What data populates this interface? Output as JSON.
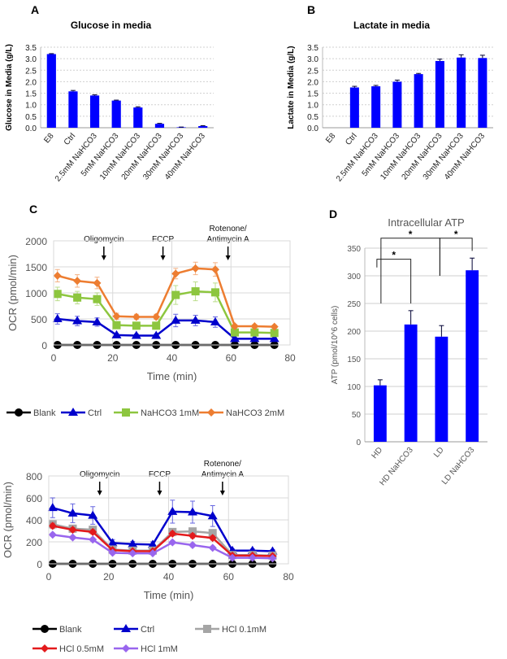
{
  "panel_labels": [
    "A",
    "B",
    "C",
    "D"
  ],
  "chart_data": [
    {
      "panel": "A",
      "type": "bar",
      "title": "Glucose in media",
      "xlabel": "",
      "ylabel": "Glucose in Media (g/L)",
      "ylim": [
        0,
        3.5
      ],
      "yticks": [
        "0.0",
        "0.5",
        "1.0",
        "1.5",
        "2.0",
        "2.5",
        "3.0",
        "3.5"
      ],
      "grid": "horizontal dashed",
      "categories": [
        "E8",
        "Ctrl",
        "2.5mM NaHCO3",
        "5mM NaHCO3",
        "10mM NaHCO3",
        "20mM NaHCO3",
        "30mM NaHCO3",
        "40mM NaHCO3"
      ],
      "values": [
        3.2,
        1.58,
        1.4,
        1.18,
        0.88,
        0.17,
        0.02,
        0.07
      ],
      "errors": [
        0.02,
        0.04,
        0.03,
        0.02,
        0.03,
        0.02,
        0.01,
        0.02
      ],
      "color": "#0000ff"
    },
    {
      "panel": "B",
      "type": "bar",
      "title": "Lactate in media",
      "xlabel": "",
      "ylabel": "Lactate in Media (g/L)",
      "ylim": [
        0,
        3.5
      ],
      "yticks": [
        "0.0",
        "0.5",
        "1.0",
        "1.5",
        "2.0",
        "2.5",
        "3.0",
        "3.5"
      ],
      "grid": "horizontal dashed",
      "categories": [
        "E8",
        "Ctrl",
        "2.5mM NaHCO3",
        "5mM NaHCO3",
        "10mM NaHCO3",
        "20mM NaHCO3",
        "30mM NaHCO3",
        "40mM NaHCO3"
      ],
      "values": [
        0,
        1.75,
        1.8,
        2.0,
        2.33,
        2.9,
        3.05,
        3.03
      ],
      "errors": [
        0,
        0.05,
        0.04,
        0.07,
        0.03,
        0.08,
        0.12,
        0.12
      ],
      "color": "#0000ff"
    },
    {
      "panel": "C",
      "type": "line",
      "xlabel": "Time (min)",
      "ylabel": "OCR (pmol/min)",
      "xlim": [
        0,
        80
      ],
      "ylim": [
        0,
        2000
      ],
      "xticks": [
        "0",
        "20",
        "40",
        "60",
        "80"
      ],
      "yticks": [
        "0",
        "500",
        "1000",
        "1500",
        "2000"
      ],
      "grid": true,
      "legend": "bottom",
      "annotations": [
        {
          "text": [
            "Oligomycin"
          ],
          "x": 17
        },
        {
          "text": [
            "FCCP"
          ],
          "x": 37
        },
        {
          "text": [
            "Rotenone/",
            "Antimycin A"
          ],
          "x": 59
        }
      ],
      "x": [
        1.3,
        8,
        14.7,
        21.3,
        28,
        34.7,
        41.3,
        48,
        54.7,
        61.3,
        68,
        74.7
      ],
      "series": [
        {
          "name": "Blank",
          "color": "#000000",
          "marker": "circle",
          "values": [
            0,
            0,
            0,
            0,
            0,
            0,
            0,
            0,
            0,
            0,
            0,
            0
          ],
          "errors": [
            0,
            0,
            0,
            0,
            0,
            0,
            0,
            0,
            0,
            0,
            0,
            0
          ]
        },
        {
          "name": "Ctrl",
          "color": "#0000cc",
          "marker": "triangle",
          "values": [
            500,
            460,
            440,
            190,
            180,
            180,
            470,
            470,
            440,
            120,
            120,
            120
          ],
          "errors": [
            100,
            90,
            80,
            30,
            30,
            30,
            120,
            100,
            100,
            20,
            20,
            20
          ]
        },
        {
          "name": "NaHCO3 1mM",
          "color": "#8dc63f",
          "marker": "square",
          "values": [
            980,
            910,
            880,
            380,
            370,
            370,
            960,
            1030,
            1010,
            240,
            240,
            230
          ],
          "errors": [
            130,
            120,
            120,
            30,
            30,
            30,
            180,
            180,
            180,
            30,
            30,
            30
          ]
        },
        {
          "name": "NaHCO3 2mM",
          "color": "#ed7d31",
          "marker": "diamond",
          "values": [
            1330,
            1230,
            1190,
            550,
            540,
            540,
            1370,
            1470,
            1450,
            360,
            360,
            350
          ],
          "errors": [
            120,
            120,
            110,
            60,
            50,
            50,
            100,
            120,
            130,
            30,
            30,
            30
          ]
        }
      ]
    },
    {
      "panel": "C",
      "type": "line",
      "xlabel": "Time (min)",
      "ylabel": "OCR (pmol/min)",
      "xlim": [
        0,
        80
      ],
      "ylim": [
        0,
        800
      ],
      "xticks": [
        "0",
        "20",
        "40",
        "60",
        "80"
      ],
      "yticks": [
        "0",
        "200",
        "400",
        "600",
        "800"
      ],
      "grid": true,
      "legend": "bottom",
      "annotations": [
        {
          "text": [
            "Oligomycin"
          ],
          "x": 17
        },
        {
          "text": [
            "FCCP"
          ],
          "x": 37
        },
        {
          "text": [
            "Rotenone/",
            "Antimycin A"
          ],
          "x": 58
        }
      ],
      "x": [
        1.3,
        8,
        14.7,
        21.3,
        28,
        34.7,
        41.3,
        48,
        54.7,
        61.3,
        68,
        74.7
      ],
      "series": [
        {
          "name": "Blank",
          "color": "#000000",
          "marker": "circle",
          "values": [
            0,
            0,
            0,
            0,
            0,
            0,
            0,
            0,
            0,
            0,
            0,
            0
          ],
          "errors": [
            0,
            0,
            0,
            0,
            0,
            0,
            0,
            0,
            0,
            0,
            0,
            0
          ]
        },
        {
          "name": "Ctrl",
          "color": "#0000cc",
          "marker": "triangle",
          "values": [
            510,
            460,
            440,
            190,
            180,
            175,
            475,
            470,
            435,
            120,
            120,
            115
          ],
          "errors": [
            90,
            85,
            80,
            30,
            25,
            25,
            105,
            100,
            95,
            15,
            15,
            15
          ]
        },
        {
          "name": "HCl 0.1mM",
          "color": "#a5a5a5",
          "marker": "square",
          "values": [
            360,
            320,
            310,
            130,
            120,
            120,
            290,
            295,
            280,
            80,
            80,
            75
          ],
          "errors": [
            20,
            20,
            20,
            10,
            10,
            10,
            20,
            20,
            20,
            10,
            10,
            10
          ]
        },
        {
          "name": "HCl 0.5mM",
          "color": "#e31a1c",
          "marker": "diamond",
          "values": [
            345,
            310,
            290,
            125,
            115,
            115,
            275,
            255,
            235,
            75,
            75,
            70
          ],
          "errors": [
            25,
            20,
            20,
            10,
            10,
            10,
            20,
            20,
            20,
            10,
            10,
            10
          ]
        },
        {
          "name": "HCl 1mM",
          "color": "#9966ee",
          "marker": "diamond",
          "values": [
            265,
            240,
            220,
            100,
            95,
            95,
            195,
            170,
            145,
            55,
            55,
            50
          ],
          "errors": [
            15,
            15,
            15,
            10,
            10,
            10,
            15,
            15,
            15,
            5,
            5,
            5
          ]
        }
      ]
    },
    {
      "panel": "D",
      "type": "bar",
      "title": "Intracellular ATP",
      "xlabel": "",
      "ylabel": "ATP (pmol/10^6 cells)",
      "ylim": [
        0,
        350
      ],
      "yticks": [
        "0",
        "50",
        "100",
        "150",
        "200",
        "250",
        "300",
        "350"
      ],
      "grid": "horizontal",
      "categories": [
        "HD",
        "HD NaHCO3",
        "LD",
        "LD NaHCO3"
      ],
      "values": [
        102,
        212,
        190,
        310
      ],
      "errors": [
        10,
        25,
        20,
        22
      ],
      "color": "#0000ff",
      "significance": [
        {
          "pair": [
            "HD",
            "HD NaHCO3"
          ],
          "label": "*"
        },
        {
          "pair": [
            "HD",
            "LD"
          ],
          "label": "*"
        },
        {
          "pair": [
            "LD",
            "LD NaHCO3"
          ],
          "label": "*"
        }
      ]
    }
  ]
}
